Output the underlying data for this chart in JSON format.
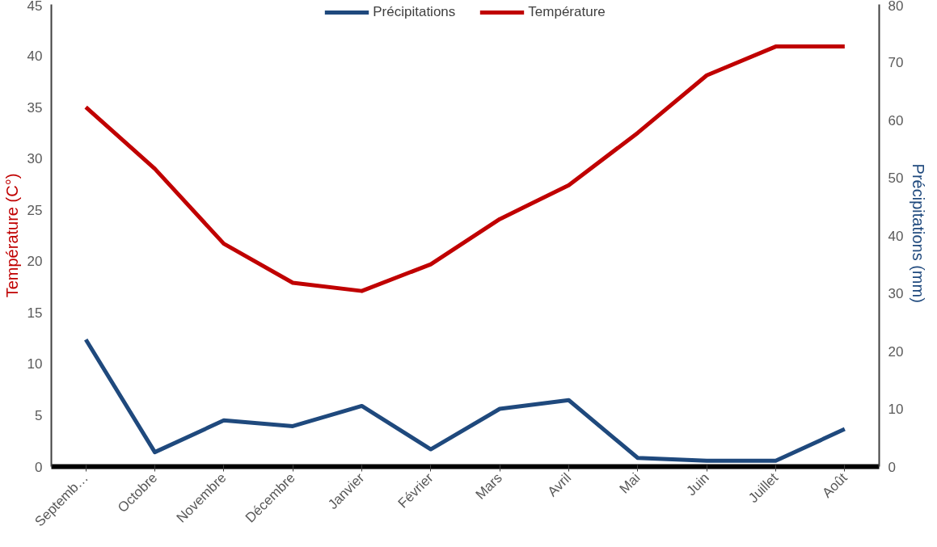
{
  "chart_data": {
    "type": "line",
    "ylabel": "Température (C°)",
    "y2label": "Précipitations  (mm)",
    "categories": [
      "Septemb…",
      "Octobre",
      "Novembre",
      "Décembre",
      "Janvier",
      "Février",
      "Mars",
      "Avril",
      "Mai",
      "Juin",
      "Juillet",
      "Août"
    ],
    "series": [
      {
        "name": "Précipitations",
        "color": "#1f497d",
        "axis": "y2",
        "values": [
          22,
          2.5,
          8,
          7,
          10.5,
          3,
          10,
          11.5,
          1.5,
          1,
          1,
          6.5
        ]
      },
      {
        "name": "Température",
        "color": "#c00000",
        "values": [
          35,
          29,
          21.7,
          17.9,
          17.1,
          19.7,
          24.1,
          27.4,
          32.5,
          38.1,
          40.9,
          40.9
        ]
      }
    ],
    "ylim": [
      0,
      45
    ],
    "yticks": [
      0,
      5,
      10,
      15,
      20,
      25,
      30,
      35,
      40,
      45
    ],
    "y2lim": [
      0,
      80
    ],
    "y2ticks": [
      0,
      10,
      20,
      30,
      40,
      50,
      60,
      70,
      80
    ],
    "grid": false,
    "legend": "top",
    "marker": "none",
    "line_style": "solid"
  }
}
